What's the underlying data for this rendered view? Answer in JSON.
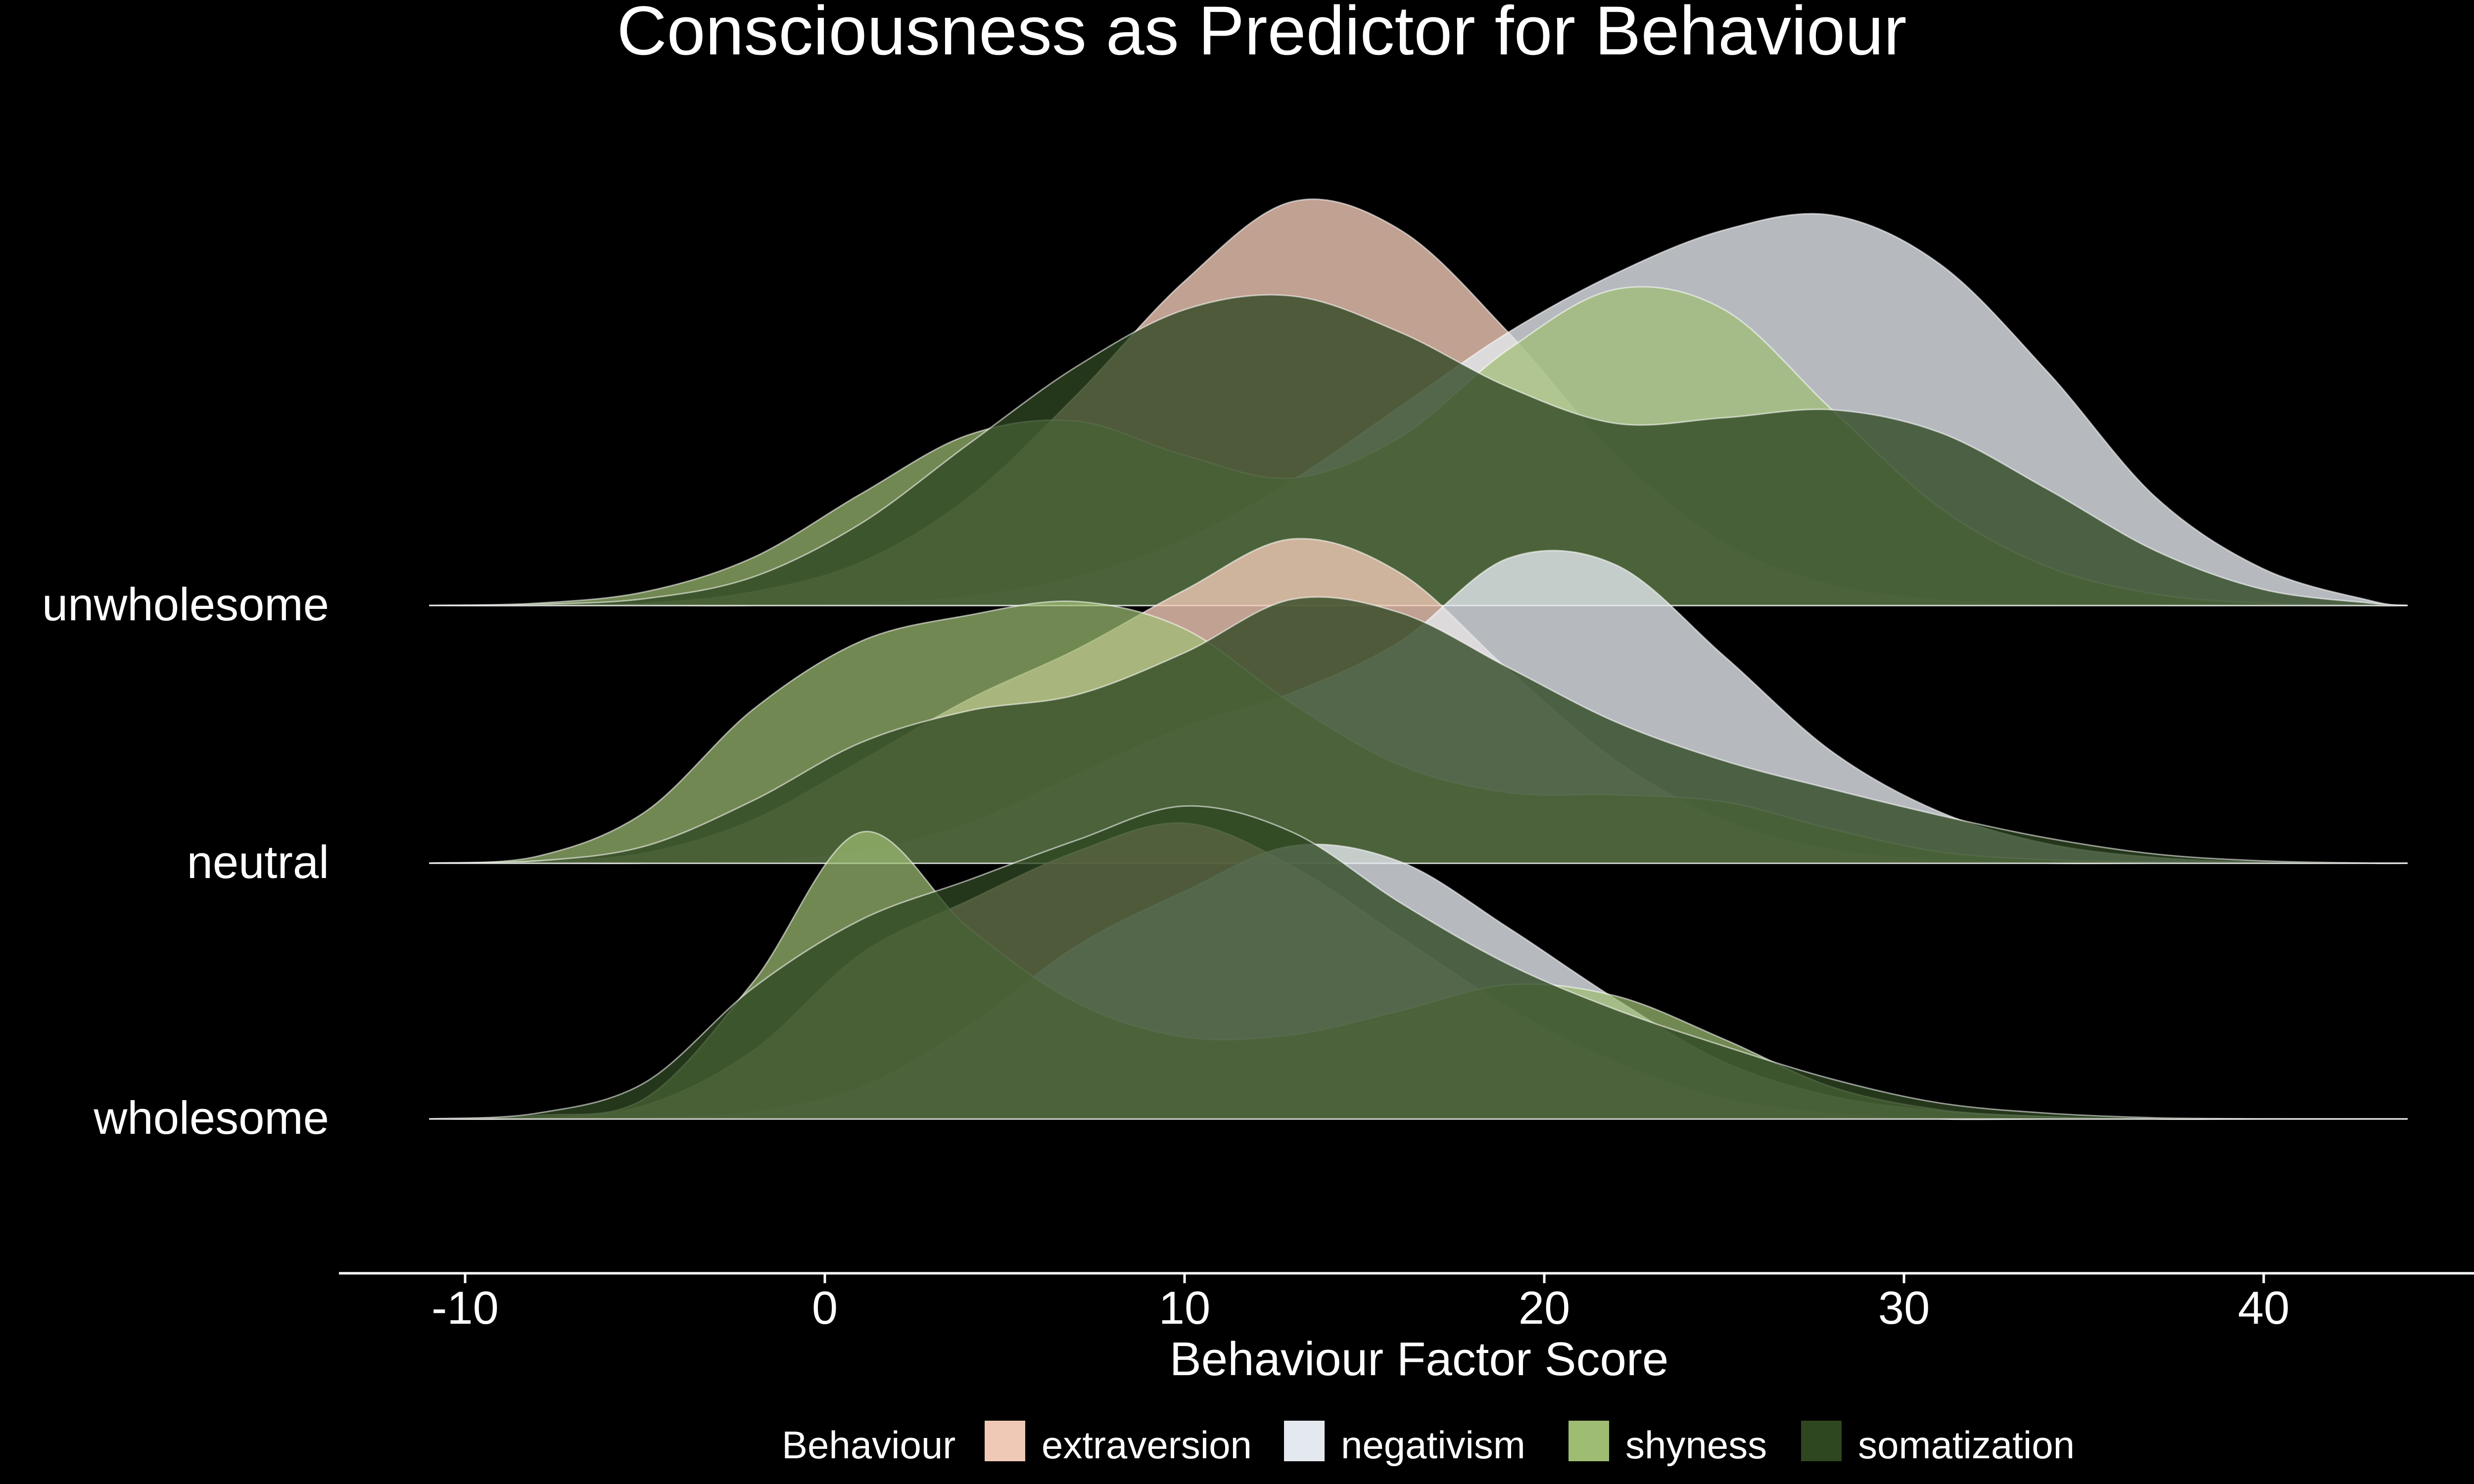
{
  "chart_data": {
    "type": "ridgeline",
    "title": "Consciousness as Predictor for Behaviour",
    "xlabel": "Behaviour Factor Score",
    "ylabel": "",
    "xlim": [
      -13.5,
      47.5
    ],
    "x_ticks": [
      -10,
      0,
      10,
      20,
      30,
      40
    ],
    "categories": [
      "unwholesome",
      "neutral",
      "wholesome"
    ],
    "legend": {
      "title": "Behaviour",
      "position": "bottom",
      "entries": [
        "extraversion",
        "negativism",
        "shyness",
        "somatization"
      ]
    },
    "grid": false,
    "background": "#000000",
    "colors": {
      "extraversion": "#f0c9b6",
      "negativism": "#e4e8ef",
      "shyness": "#9ebd73",
      "somatization": "#2e4721"
    },
    "x_grid": [
      -11,
      -8,
      -5,
      -2,
      1,
      4,
      7,
      10,
      13,
      16,
      19,
      22,
      25,
      28,
      31,
      34,
      37,
      40,
      43,
      44
    ],
    "ridges": [
      {
        "category": "unwholesome",
        "series": [
          {
            "name": "extraversion",
            "density": [
              0,
              0,
              0.02,
              0.12,
              0.38,
              0.95,
              1.85,
              2.85,
              3.55,
              3.3,
              2.4,
              1.32,
              0.55,
              0.18,
              0.05,
              0.01,
              0,
              0,
              0,
              0
            ]
          },
          {
            "name": "negativism",
            "density": [
              0,
              0,
              0,
              0,
              0.02,
              0.08,
              0.25,
              0.58,
              1.1,
              1.75,
              2.4,
              2.92,
              3.3,
              3.43,
              3.0,
              2.05,
              0.95,
              0.32,
              0.04,
              0
            ]
          },
          {
            "name": "shyness",
            "density": [
              0,
              0.02,
              0.12,
              0.42,
              0.98,
              1.5,
              1.62,
              1.32,
              1.12,
              1.48,
              2.25,
              2.78,
              2.6,
              1.72,
              0.86,
              0.34,
              0.1,
              0.02,
              0,
              0
            ]
          },
          {
            "name": "somatization",
            "density": [
              0,
              0.01,
              0.06,
              0.25,
              0.72,
              1.42,
              2.1,
              2.6,
              2.72,
              2.4,
              1.92,
              1.6,
              1.65,
              1.72,
              1.52,
              1.02,
              0.48,
              0.14,
              0.02,
              0
            ]
          }
        ]
      },
      {
        "category": "neutral",
        "series": [
          {
            "name": "extraversion",
            "density": [
              0,
              0.02,
              0.09,
              0.38,
              0.9,
              1.44,
              1.88,
              2.4,
              2.85,
              2.55,
              1.7,
              0.9,
              0.38,
              0.12,
              0.03,
              0,
              0,
              0,
              0,
              0
            ]
          },
          {
            "name": "negativism",
            "density": [
              0,
              0,
              0,
              0.02,
              0.1,
              0.35,
              0.78,
              1.2,
              1.5,
              1.95,
              2.68,
              2.62,
              1.82,
              0.98,
              0.45,
              0.17,
              0.05,
              0.01,
              0,
              0
            ]
          },
          {
            "name": "shyness",
            "density": [
              0,
              0.06,
              0.45,
              1.35,
              1.95,
              2.18,
              2.3,
              2.06,
              1.4,
              0.86,
              0.62,
              0.6,
              0.54,
              0.3,
              0.1,
              0.03,
              0.01,
              0,
              0,
              0
            ]
          },
          {
            "name": "somatization",
            "density": [
              0,
              0.02,
              0.15,
              0.55,
              1.06,
              1.34,
              1.48,
              1.85,
              2.32,
              2.2,
              1.72,
              1.24,
              0.9,
              0.65,
              0.42,
              0.22,
              0.08,
              0.02,
              0,
              0
            ]
          }
        ]
      },
      {
        "category": "wholesome",
        "series": [
          {
            "name": "extraversion",
            "density": [
              0,
              0.01,
              0.12,
              0.6,
              1.45,
              1.92,
              2.35,
              2.6,
              2.22,
              1.6,
              0.98,
              0.5,
              0.18,
              0.05,
              0,
              0,
              0,
              0,
              0,
              0
            ]
          },
          {
            "name": "negativism",
            "density": [
              0,
              0,
              0.01,
              0.06,
              0.28,
              0.82,
              1.52,
              2.0,
              2.4,
              2.26,
              1.68,
              1.05,
              0.5,
              0.2,
              0.07,
              0.02,
              0,
              0,
              0,
              0
            ]
          },
          {
            "name": "shyness",
            "density": [
              0,
              0.03,
              0.18,
              1.2,
              2.52,
              1.68,
              1.02,
              0.72,
              0.74,
              0.95,
              1.18,
              1.08,
              0.7,
              0.28,
              0.08,
              0.02,
              0,
              0,
              0,
              0
            ]
          },
          {
            "name": "somatization",
            "density": [
              0,
              0.05,
              0.32,
              1.15,
              1.75,
              2.1,
              2.45,
              2.75,
              2.52,
              1.9,
              1.36,
              0.96,
              0.64,
              0.35,
              0.14,
              0.05,
              0.01,
              0,
              0,
              0
            ]
          }
        ]
      }
    ]
  }
}
